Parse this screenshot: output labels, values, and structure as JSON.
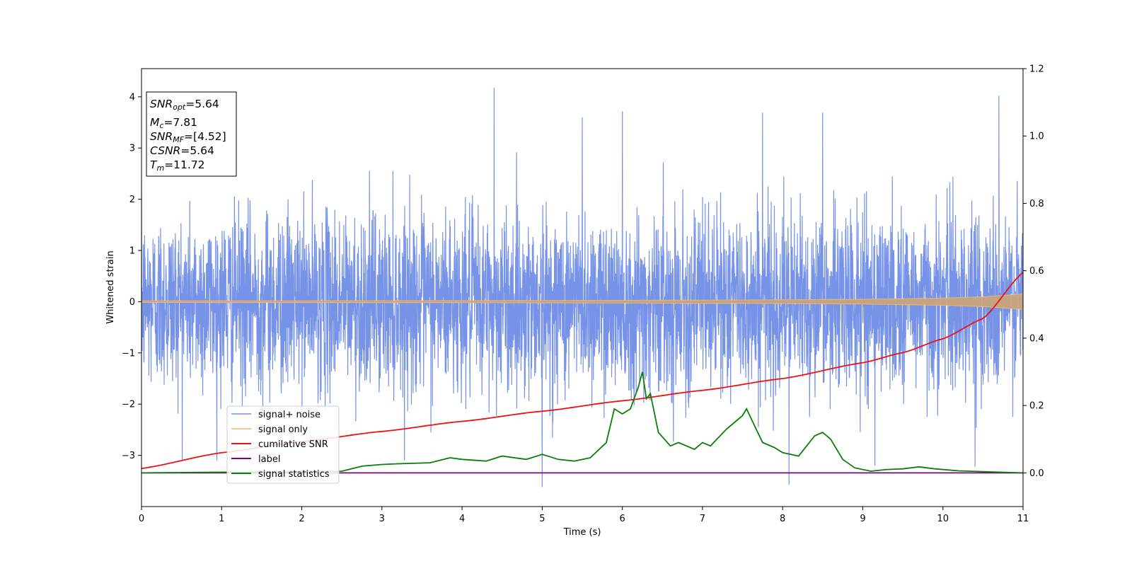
{
  "chart_data": {
    "type": "line",
    "title": "",
    "xlabel": "Time (s)",
    "ylabel": "Whitened strain",
    "xlim": [
      0,
      11
    ],
    "ylim": [
      -4.0,
      4.55
    ],
    "ylim_right": [
      -0.1,
      1.2
    ],
    "xticks": [
      0,
      1,
      2,
      3,
      4,
      5,
      6,
      7,
      8,
      9,
      10,
      11
    ],
    "yticks": [
      -3,
      -2,
      -1,
      0,
      1,
      2,
      3,
      4
    ],
    "yticks_right": [
      0.0,
      0.2,
      0.4,
      0.6,
      0.8,
      1.0,
      1.2
    ],
    "grid": false,
    "legend_position": "lower-left",
    "colors": {
      "noise": "#7793e8",
      "signal": "#f5b967",
      "snr": "#ee1111",
      "label": "#800080",
      "stats": "#0a7d0a"
    },
    "annotation": [
      {
        "base": "SNR",
        "sub": "opt",
        "value": "=5.64"
      },
      {
        "base": "M",
        "sub": "c",
        "value": "=7.81"
      },
      {
        "base": "SNR",
        "sub": "MF",
        "value": "=[4.52]"
      },
      {
        "base": "CSNR",
        "sub": "",
        "value": "=5.64"
      },
      {
        "base": "T",
        "sub": "m",
        "value": "=11.72"
      }
    ],
    "series": [
      {
        "name": "signal+ noise",
        "axis": "left",
        "description_values": "white noise, std ~0.85",
        "noise_std": 0.85,
        "peaks": [
          [
            4.4,
            4.18
          ],
          [
            10.7,
            4.02
          ],
          [
            6.0,
            3.72
          ],
          [
            7.75,
            3.69
          ],
          [
            8.5,
            3.69
          ],
          [
            5.5,
            3.6
          ]
        ],
        "troughs": [
          [
            5.0,
            -3.62
          ],
          [
            8.08,
            -3.57
          ],
          [
            10.4,
            -3.22
          ],
          [
            9.15,
            -3.2
          ]
        ]
      },
      {
        "name": "signal only",
        "axis": "left",
        "envelope_x": [
          0,
          2,
          4,
          6,
          8,
          9,
          10,
          10.5,
          11
        ],
        "envelope_y": [
          0.015,
          0.017,
          0.02,
          0.026,
          0.036,
          0.047,
          0.07,
          0.095,
          0.15
        ]
      },
      {
        "name": "cumilative SNR",
        "axis": "right",
        "x": [
          0,
          1,
          2,
          3,
          4,
          5,
          6,
          7,
          8,
          9,
          9.5,
          10,
          10.5,
          11
        ],
        "y": [
          0.013,
          0.06,
          0.093,
          0.123,
          0.153,
          0.183,
          0.214,
          0.245,
          0.28,
          0.327,
          0.357,
          0.398,
          0.458,
          0.595
        ]
      },
      {
        "name": "label",
        "axis": "right",
        "x": [
          0,
          11
        ],
        "y": [
          0.0,
          0.0
        ]
      },
      {
        "name": "signal statistics",
        "axis": "right",
        "x": [
          0,
          2.5,
          2.75,
          3.0,
          3.2,
          3.6,
          3.85,
          4.0,
          4.3,
          4.5,
          4.8,
          5.0,
          5.2,
          5.4,
          5.6,
          5.8,
          5.9,
          6.0,
          6.1,
          6.2,
          6.25,
          6.3,
          6.35,
          6.45,
          6.6,
          6.7,
          6.8,
          6.9,
          7.0,
          7.1,
          7.3,
          7.4,
          7.5,
          7.55,
          7.65,
          7.75,
          7.9,
          8.0,
          8.2,
          8.4,
          8.5,
          8.6,
          8.75,
          8.9,
          9.1,
          9.3,
          9.5,
          9.7,
          9.9,
          10.2,
          10.6,
          11
        ],
        "y": [
          0.0,
          0.005,
          0.02,
          0.025,
          0.027,
          0.03,
          0.045,
          0.04,
          0.035,
          0.05,
          0.04,
          0.055,
          0.04,
          0.035,
          0.045,
          0.09,
          0.19,
          0.175,
          0.19,
          0.255,
          0.3,
          0.22,
          0.235,
          0.12,
          0.08,
          0.09,
          0.08,
          0.07,
          0.09,
          0.08,
          0.13,
          0.15,
          0.17,
          0.19,
          0.14,
          0.09,
          0.075,
          0.06,
          0.05,
          0.11,
          0.12,
          0.1,
          0.04,
          0.015,
          0.005,
          0.01,
          0.012,
          0.018,
          0.012,
          0.006,
          0.003,
          0.0
        ]
      }
    ]
  }
}
